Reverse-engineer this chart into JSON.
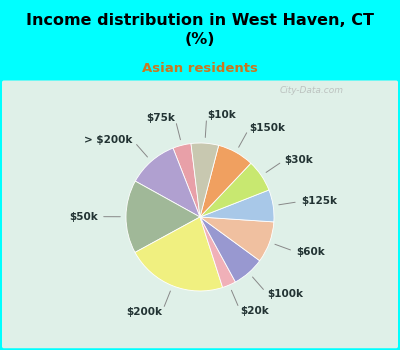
{
  "title": "Income distribution in West Haven, CT\n(%)",
  "subtitle": "Asian residents",
  "background_color": "#00FFFF",
  "panel_color": "#dff0e8",
  "labels": [
    "$75k",
    "> $200k",
    "$50k",
    "$200k",
    "$20k",
    "$100k",
    "$60k",
    "$125k",
    "$30k",
    "$150k",
    "$10k"
  ],
  "values": [
    4,
    11,
    16,
    22,
    3,
    7,
    9,
    7,
    7,
    8,
    6
  ],
  "colors": [
    "#e8a0a8",
    "#b0a0d0",
    "#a0b898",
    "#f0f080",
    "#f0b0b8",
    "#9898d0",
    "#f0c0a0",
    "#a8c8e8",
    "#c8e870",
    "#f0a060",
    "#c8c8b0"
  ],
  "label_color": "#223333",
  "title_color": "#000000",
  "subtitle_color": "#c87820",
  "startangle": 97,
  "watermark": "City-Data.com"
}
